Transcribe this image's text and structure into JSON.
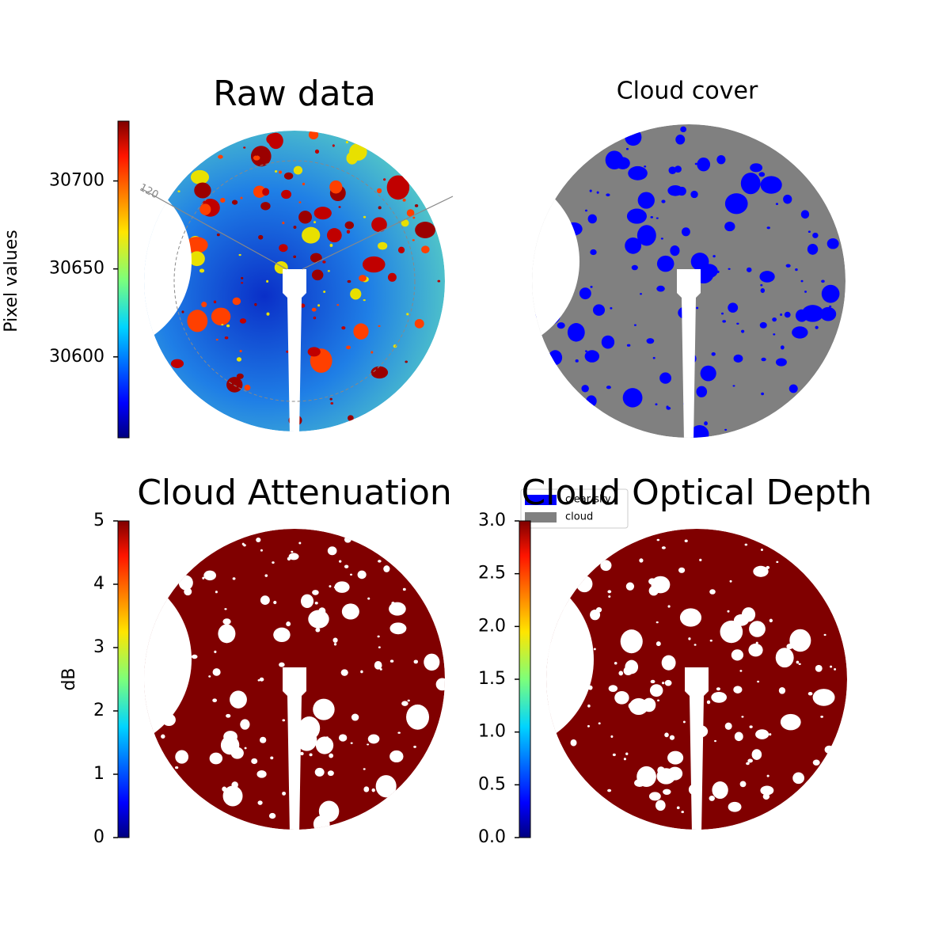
{
  "chart_data": [
    {
      "type": "image",
      "title": "Raw data",
      "colorbar_label": "Pixel values",
      "ylim": [
        30554,
        30734
      ],
      "yticks": [
        30600,
        30650,
        30700
      ],
      "annotations": [
        "120"
      ]
    },
    {
      "type": "image",
      "title": "Cloud cover",
      "series": [
        {
          "name": "clear sky",
          "color": "#0000ff"
        },
        {
          "name": "cloud",
          "color": "#808080"
        }
      ]
    },
    {
      "type": "image",
      "title": "Cloud Attenuation",
      "colorbar_label": "dB",
      "ylim": [
        0,
        5
      ],
      "yticks": [
        0,
        1,
        2,
        3,
        4,
        5
      ]
    },
    {
      "type": "image",
      "title": "Cloud Optical Depth",
      "ylim": [
        0,
        3
      ],
      "yticks": [
        {
          "value": 0,
          "label": "0.0"
        },
        0.5,
        {
          "value": 1,
          "label": "1.0"
        },
        1.5,
        {
          "value": 2,
          "label": "2.0"
        },
        2.5,
        {
          "value": 3,
          "label": "3.0"
        }
      ]
    }
  ]
}
